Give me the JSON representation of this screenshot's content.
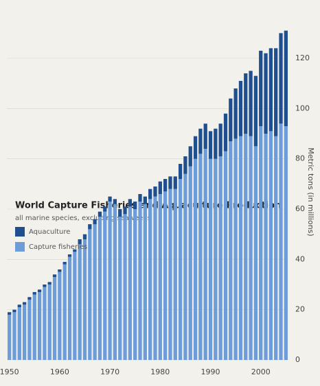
{
  "chart_data": {
    "type": "stacked_bar",
    "title": "World Capture Fisheries and Aquaculture Production",
    "subtitle": "all marine species, excluding seaweeds",
    "y_label": "Metric tons (in millions)",
    "categories": [
      "1950",
      null,
      null,
      null,
      null,
      null,
      null,
      null,
      null,
      null,
      "1960",
      null,
      null,
      null,
      null,
      null,
      null,
      null,
      null,
      null,
      "1970",
      null,
      null,
      null,
      null,
      null,
      null,
      null,
      null,
      null,
      "1980",
      null,
      null,
      null,
      null,
      null,
      null,
      null,
      null,
      null,
      "1990",
      null,
      null,
      null,
      null,
      null,
      null,
      null,
      null,
      null,
      "2000",
      null,
      null,
      null,
      null,
      null
    ],
    "series": [
      {
        "name": "Capture fisheries",
        "color": "#6d9dd9",
        "values": [
          18,
          19,
          21,
          22,
          24,
          26,
          27,
          29,
          30,
          33,
          35,
          38,
          41,
          43,
          46,
          48,
          52,
          54,
          57,
          59,
          63,
          62,
          57,
          58,
          61,
          60,
          63,
          62,
          64,
          65,
          66,
          67,
          68,
          68,
          72,
          74,
          77,
          80,
          82,
          84,
          80,
          80,
          81,
          83,
          87,
          88,
          89,
          90,
          89,
          85,
          93,
          90,
          91,
          89,
          94,
          93
        ]
      },
      {
        "name": "Aquaculture",
        "color": "#1f4f8f",
        "values": [
          1,
          1,
          1,
          1,
          1,
          1,
          1,
          1,
          1,
          1,
          1,
          1,
          1,
          1,
          2,
          2,
          2,
          2,
          2,
          2,
          2,
          2,
          3,
          3,
          3,
          3,
          3,
          3,
          4,
          4,
          5,
          5,
          5,
          5,
          6,
          7,
          8,
          9,
          10,
          10,
          11,
          12,
          13,
          15,
          17,
          20,
          22,
          24,
          26,
          28,
          30,
          32,
          33,
          35,
          36,
          38
        ]
      }
    ],
    "ylim": [
      0,
      135
    ],
    "yticks": [
      0,
      20,
      40,
      60,
      80,
      100,
      120
    ]
  }
}
